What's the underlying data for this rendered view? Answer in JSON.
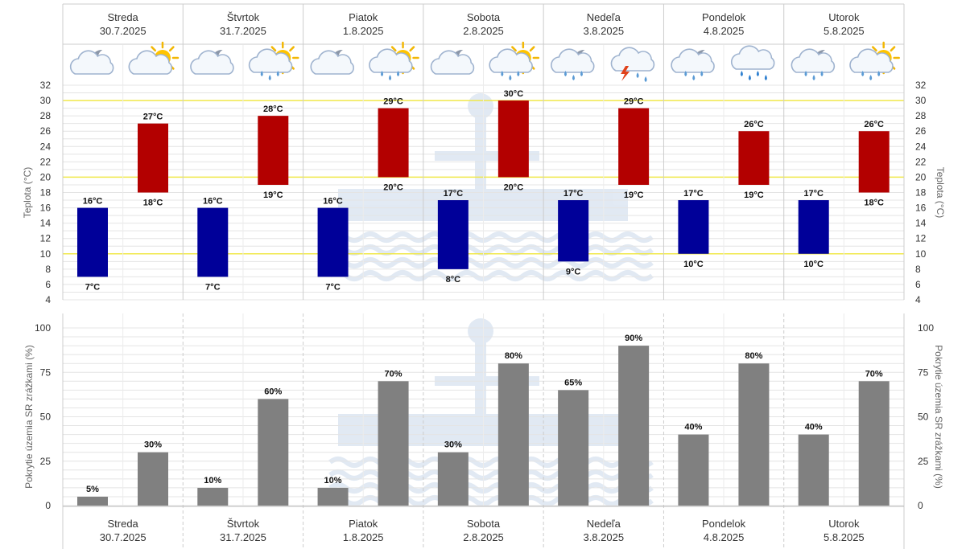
{
  "days": [
    {
      "name": "Streda",
      "date": "30.7.2025"
    },
    {
      "name": "Štvrtok",
      "date": "31.7.2025"
    },
    {
      "name": "Piatok",
      "date": "1.8.2025"
    },
    {
      "name": "Sobota",
      "date": "2.8.2025"
    },
    {
      "name": "Nedeľa",
      "date": "3.8.2025"
    },
    {
      "name": "Pondelok",
      "date": "4.8.2025"
    },
    {
      "name": "Utorok",
      "date": "5.8.2025"
    }
  ],
  "icons": [
    {
      "night": "cloudy-night-icon",
      "day": "partly-sunny-icon"
    },
    {
      "night": "cloudy-night-icon",
      "day": "sun-cloud-rain-icon"
    },
    {
      "night": "cloudy-night-icon",
      "day": "sun-cloud-rain-icon"
    },
    {
      "night": "cloudy-night-icon",
      "day": "sun-cloud-rain-icon"
    },
    {
      "night": "night-rain-icon",
      "day": "thunderstorm-icon"
    },
    {
      "night": "night-rain-icon",
      "day": "heavy-rain-icon"
    },
    {
      "night": "night-rain-icon",
      "day": "sun-cloud-rain-icon"
    }
  ],
  "chart_data": [
    {
      "type": "bar",
      "ylabel": "Teplota (°C)",
      "ylim": [
        4,
        32
      ],
      "yticks": [
        4,
        6,
        8,
        10,
        12,
        14,
        16,
        18,
        20,
        22,
        24,
        26,
        28,
        30,
        32
      ],
      "highlight_lines": [
        10,
        20,
        30
      ],
      "unit_suffix": "°C",
      "categories": [
        "30.7.2025",
        "31.7.2025",
        "1.8.2025",
        "2.8.2025",
        "3.8.2025",
        "4.8.2025",
        "5.8.2025"
      ],
      "series": [
        {
          "color": "#000099",
          "min": [
            7,
            7,
            7,
            8,
            9,
            10,
            10
          ],
          "max": [
            16,
            16,
            16,
            17,
            17,
            17,
            17
          ]
        },
        {
          "color": "#b30000",
          "min": [
            18,
            19,
            20,
            20,
            19,
            19,
            18
          ],
          "max": [
            27,
            28,
            29,
            30,
            29,
            26,
            26
          ]
        }
      ]
    },
    {
      "type": "bar",
      "ylabel": "Pokrytie územia SR zrážkami (%)",
      "ylim": [
        0,
        100
      ],
      "yticks": [
        0,
        25,
        50,
        75,
        100
      ],
      "unit_suffix": "%",
      "categories": [
        "30.7.2025",
        "31.7.2025",
        "1.8.2025",
        "2.8.2025",
        "3.8.2025",
        "4.8.2025",
        "5.8.2025"
      ],
      "series": [
        {
          "color": "#808080",
          "values": [
            5,
            10,
            10,
            30,
            65,
            40,
            40
          ]
        },
        {
          "color": "#808080",
          "values": [
            30,
            60,
            70,
            80,
            90,
            80,
            70
          ]
        }
      ]
    }
  ]
}
